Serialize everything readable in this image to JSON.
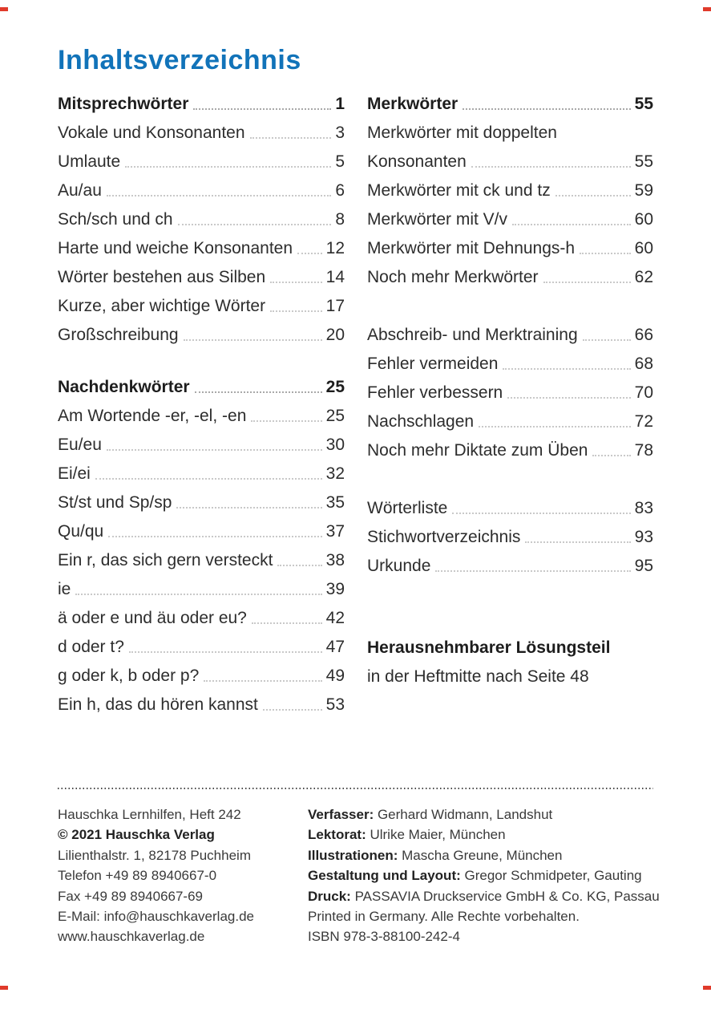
{
  "page": {
    "title": "Inhaltsverzeichnis"
  },
  "colors": {
    "title_blue": "#1173b9",
    "crop_mark_red": "#e03a2b",
    "body_text": "#2d2d2d"
  },
  "toc": {
    "left": [
      {
        "label": "Mitsprechwörter",
        "page": "1"
      },
      {
        "label": "Vokale und Konsonanten",
        "page": "3"
      },
      {
        "label": "Umlaute",
        "page": "5"
      },
      {
        "label": "Au/au",
        "page": "6"
      },
      {
        "label": "Sch/sch und ch",
        "page": "8"
      },
      {
        "label": "Harte und weiche Konsonanten",
        "page": "12"
      },
      {
        "label": "Wörter bestehen aus Silben",
        "page": "14"
      },
      {
        "label": "Kurze, aber wichtige Wörter",
        "page": "17"
      },
      {
        "label": "Großschreibung",
        "page": "20"
      },
      {
        "label": "Nachdenkwörter",
        "page": "25"
      },
      {
        "label": "Am Wortende -er, -el, -en",
        "page": "25"
      },
      {
        "label": "Eu/eu",
        "page": "30"
      },
      {
        "label": "Ei/ei",
        "page": "32"
      },
      {
        "label": "St/st und Sp/sp",
        "page": "35"
      },
      {
        "label": "Qu/qu",
        "page": "37"
      },
      {
        "label": "Ein r, das sich gern versteckt",
        "page": "38"
      },
      {
        "label": "ie",
        "page": "39"
      },
      {
        "label": "ä oder e und äu oder eu?",
        "page": "42"
      },
      {
        "label": "d oder t?",
        "page": "47"
      },
      {
        "label": "g oder k, b oder p?",
        "page": "49"
      },
      {
        "label": "Ein h, das du hören kannst",
        "page": "53"
      }
    ],
    "right": [
      {
        "label": "Merkwörter",
        "page": "55"
      },
      {
        "label": "Merkwörter mit doppelten",
        "page": ""
      },
      {
        "label": "Konsonanten",
        "page": "55"
      },
      {
        "label": "Merkwörter mit ck und tz",
        "page": "59"
      },
      {
        "label": "Merkwörter mit V/v",
        "page": "60"
      },
      {
        "label": "Merkwörter mit Dehnungs-h",
        "page": "60"
      },
      {
        "label": "Noch mehr Merkwörter",
        "page": "62"
      },
      {
        "label": "Abschreib- und Merktraining",
        "page": "66"
      },
      {
        "label": "Fehler vermeiden",
        "page": "68"
      },
      {
        "label": "Fehler verbessern",
        "page": "70"
      },
      {
        "label": "Nachschlagen",
        "page": "72"
      },
      {
        "label": "Noch mehr Diktate zum Üben",
        "page": "78"
      },
      {
        "label": "Wörterliste",
        "page": "83"
      },
      {
        "label": "Stichwortverzeichnis",
        "page": "93"
      },
      {
        "label": "Urkunde",
        "page": "95"
      },
      {
        "label": "Herausnehmbarer Lösungsteil",
        "page": ""
      },
      {
        "label": "in der Heftmitte nach Seite 48",
        "page": ""
      }
    ]
  },
  "footer": {
    "publisher": [
      "Hauschka Lernhilfen, Heft 242",
      "© 2021 Hauschka Verlag",
      "Lilienthalstr. 1, 82178 Puchheim",
      "Telefon +49 89 8940667-0",
      "Fax +49 89 8940667-69",
      "E-Mail: info@hauschkaverlag.de",
      "www.hauschkaverlag.de"
    ],
    "credits": [
      {
        "label": "Verfasser:",
        "text": " Gerhard Widmann, Landshut"
      },
      {
        "label": "Lektorat:",
        "text": " Ulrike Maier, München"
      },
      {
        "label": "Illustrationen:",
        "text": " Mascha Greune, München"
      },
      {
        "label": "Gestaltung und Layout:",
        "text": " Gregor Schmidpeter, Gauting"
      },
      {
        "label": "Druck:",
        "text": " PASSAVIA Druckservice GmbH & Co. KG, Passau"
      },
      {
        "label": "",
        "text": "Printed in Germany. Alle Rechte vorbehalten."
      },
      {
        "label": "",
        "text": "ISBN 978-3-88100-242-4"
      }
    ]
  }
}
